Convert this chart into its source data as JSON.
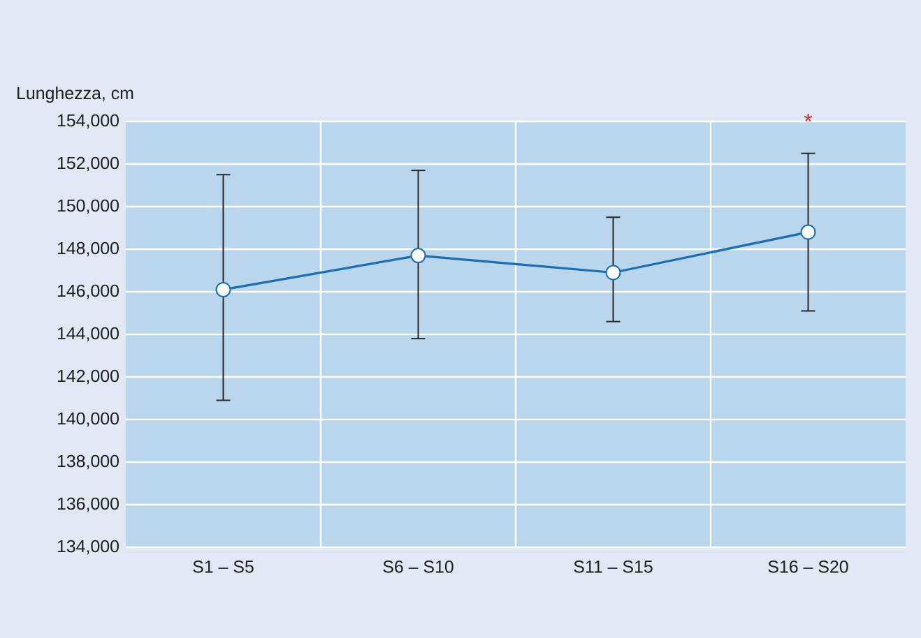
{
  "chart_data": {
    "type": "line",
    "ylabel": "Lunghezza, cm",
    "categories": [
      "S1 – S5",
      "S6 – S10",
      "S11 – S15",
      "S16 – S20"
    ],
    "series": [
      {
        "color": "#1b6db4",
        "values": [
          146100,
          147700,
          146900,
          148800
        ],
        "errors": [
          [
            140900,
            151500
          ],
          [
            143800,
            151700
          ],
          [
            144600,
            149500
          ],
          [
            145100,
            152500
          ]
        ]
      }
    ],
    "ylim": [
      134000,
      154000
    ],
    "yticks": [
      {
        "value": 134000,
        "label": "134,000"
      },
      {
        "value": 136000,
        "label": "136,000"
      },
      {
        "value": 138000,
        "label": "138,000"
      },
      {
        "value": 140000,
        "label": "140,000"
      },
      {
        "value": 142000,
        "label": "142,000"
      },
      {
        "value": 144000,
        "label": "144,000"
      },
      {
        "value": 146000,
        "label": "146,000"
      },
      {
        "value": 148000,
        "label": "148,000"
      },
      {
        "value": 150000,
        "label": "150,000"
      },
      {
        "value": 152000,
        "label": "152,000"
      },
      {
        "value": 154000,
        "label": "154,000"
      }
    ],
    "annotations": [
      "*"
    ],
    "grid": true,
    "marker": "circle",
    "line_style": "solid"
  }
}
